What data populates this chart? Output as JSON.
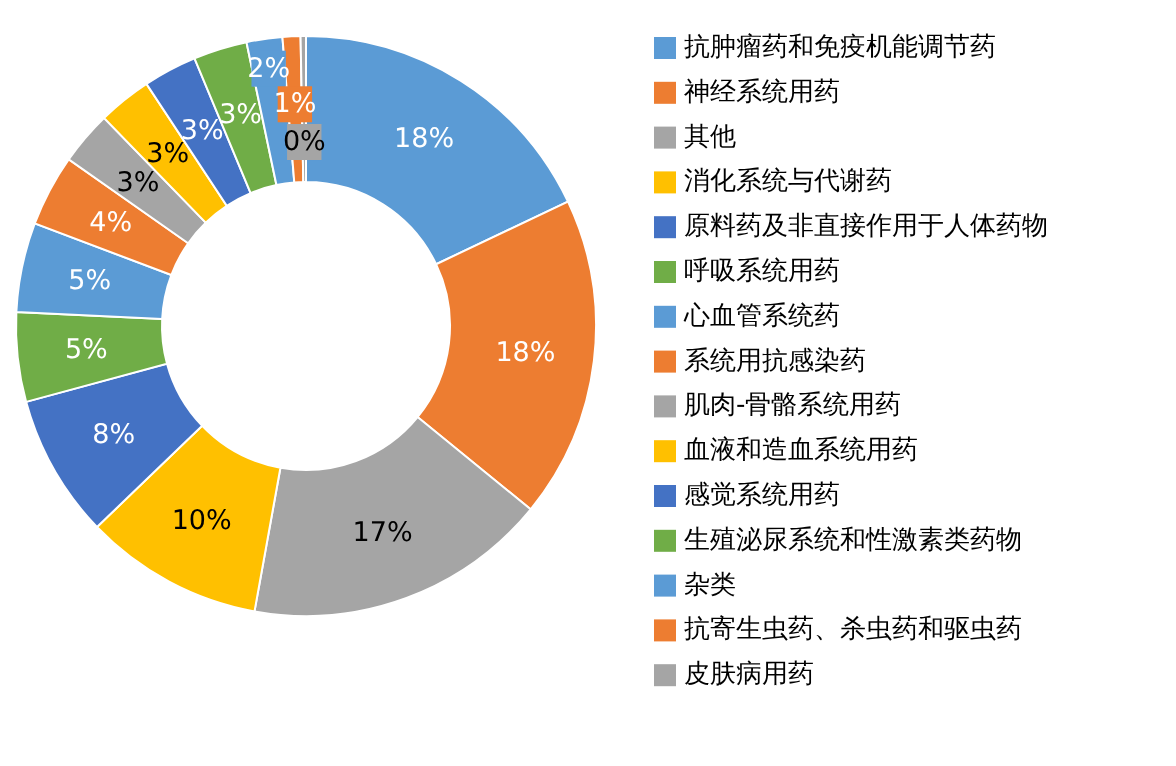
{
  "chart_data": {
    "type": "donut",
    "categories": [
      "抗肿瘤药和免疫机能调节药",
      "神经系统用药",
      "其他",
      "消化系统与代谢药",
      "原料药及非直接作用于人体药物",
      "呼吸系统用药",
      "心血管系统药",
      "系统用抗感染药",
      "肌肉-骨骼系统用药",
      "血液和造血系统用药",
      "感觉系统用药",
      "生殖泌尿系统和性激素类药物",
      "杂类",
      "抗寄生虫药、杀虫药和驱虫药",
      "皮肤病用药"
    ],
    "values": [
      18,
      18,
      17,
      10,
      8,
      5,
      5,
      4,
      3,
      3,
      3,
      3,
      2,
      1,
      0.3
    ],
    "value_labels": [
      "18%",
      "18%",
      "17%",
      "10%",
      "8%",
      "5%",
      "5%",
      "4%",
      "3%",
      "3%",
      "3%",
      "3%",
      "2%",
      "1%",
      "0%"
    ],
    "colors": [
      "#5b9bd5",
      "#ed7d31",
      "#a5a5a5",
      "#ffc000",
      "#4472c4",
      "#70ad47",
      "#5b9bd5",
      "#ed7d31",
      "#a5a5a5",
      "#ffc000",
      "#4472c4",
      "#70ad47",
      "#5b9bd5",
      "#ed7d31",
      "#a5a5a5"
    ],
    "legend": "right"
  }
}
